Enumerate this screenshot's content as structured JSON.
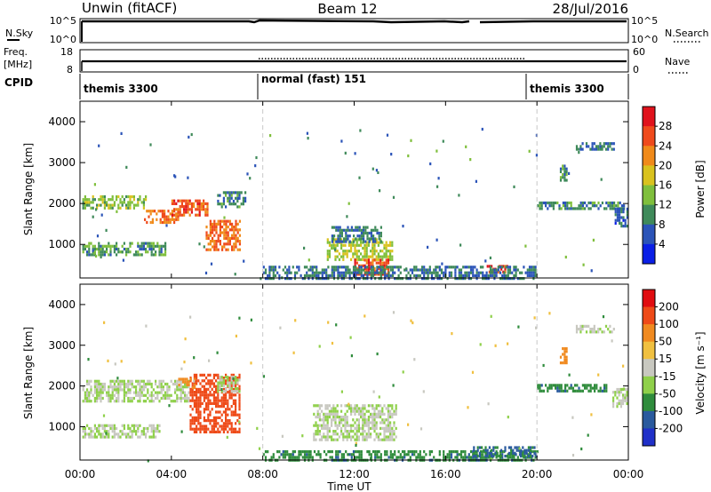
{
  "header": {
    "title": "Unwin (fitACF)",
    "beam": "Beam 12",
    "date": "28/Jul/2016"
  },
  "labels": {
    "nsky": "N.Sky",
    "nsearch": "N.Search",
    "freq_top": "Freq.",
    "freq_unit": "[MHz]",
    "nave": "Nave",
    "cpid": "CPID",
    "ylabel": "Slant Range [km]",
    "xlabel": "Time UT"
  },
  "ticks": {
    "noise_left": [
      "10^5",
      "10^0"
    ],
    "noise_right": [
      "10^5",
      "10^0"
    ],
    "freq_left": [
      "18",
      "8"
    ],
    "freq_right": [
      "60",
      "0"
    ],
    "range": [
      "1000",
      "2000",
      "3000",
      "4000"
    ],
    "time": [
      "00:00",
      "04:00",
      "08:00",
      "12:00",
      "16:00",
      "20:00",
      "00:00"
    ]
  },
  "cpid_segments": [
    {
      "label": "themis 3300",
      "start_h": 0,
      "end_h": 8
    },
    {
      "label": "normal (fast) 151",
      "start_h": 8,
      "end_h": 20
    },
    {
      "label": "themis 3300",
      "start_h": 20,
      "end_h": 24
    }
  ],
  "colorbars": {
    "power": {
      "label": "Power [dB]",
      "ticks": [
        "4",
        "8",
        "12",
        "16",
        "20",
        "24",
        "28"
      ],
      "colors": [
        "#0a1fe6",
        "#2b54b8",
        "#3f8a5a",
        "#7fbf3c",
        "#d9c21e",
        "#f08a1a",
        "#ef4a1c",
        "#e0121c"
      ]
    },
    "velocity": {
      "label": "Velocity [m s⁻¹]",
      "ticks": [
        "200",
        "100",
        "50",
        "15",
        "-15",
        "-50",
        "-100",
        "-200"
      ],
      "colors": [
        "#2030c8",
        "#2a5a9e",
        "#2f8c3c",
        "#8fd04a",
        "#c8c8c0",
        "#f0c040",
        "#f08a20",
        "#ee4a18",
        "#e00c10"
      ]
    }
  },
  "chart_data": [
    {
      "type": "heatmap",
      "title": "Power",
      "x": {
        "label": "Time UT",
        "range_h": [
          0,
          24
        ],
        "tick_labels": [
          "00:00",
          "04:00",
          "08:00",
          "12:00",
          "16:00",
          "20:00",
          "00:00"
        ]
      },
      "y": {
        "label": "Slant Range [km]",
        "range_km": [
          180,
          4500
        ],
        "ticks": [
          1000,
          2000,
          3000,
          4000
        ]
      },
      "colorbar": {
        "label": "Power [dB]",
        "range": [
          0,
          30
        ],
        "ticks": [
          4,
          8,
          12,
          16,
          20,
          24,
          28
        ]
      },
      "regions": [
        {
          "t": [
            0.1,
            2.9
          ],
          "r": [
            1900,
            2200
          ],
          "level": 14
        },
        {
          "t": [
            2.8,
            4.3
          ],
          "r": [
            1550,
            1850
          ],
          "level": 24
        },
        {
          "t": [
            4.0,
            5.6
          ],
          "r": [
            1700,
            2100
          ],
          "level": 25
        },
        {
          "t": [
            0.1,
            3.7
          ],
          "r": [
            780,
            1060
          ],
          "level": 11
        },
        {
          "t": [
            5.5,
            7.0
          ],
          "r": [
            900,
            1600
          ],
          "level": 24
        },
        {
          "t": [
            6.0,
            7.2
          ],
          "r": [
            1900,
            2300
          ],
          "level": 9
        },
        {
          "t": [
            10.8,
            13.7
          ],
          "r": [
            650,
            1150
          ],
          "level": 16
        },
        {
          "t": [
            12.0,
            13.5
          ],
          "r": [
            250,
            650
          ],
          "level": 26
        },
        {
          "t": [
            11.0,
            13.2
          ],
          "r": [
            1100,
            1450
          ],
          "level": 8
        },
        {
          "t": [
            17.8,
            18.7
          ],
          "r": [
            300,
            500
          ],
          "level": 27
        },
        {
          "t": [
            8.0,
            20.0
          ],
          "r": [
            190,
            480
          ],
          "level": 8
        },
        {
          "t": [
            20.0,
            23.8
          ],
          "r": [
            1850,
            2050
          ],
          "level": 9
        },
        {
          "t": [
            21.0,
            21.3
          ],
          "r": [
            2600,
            2950
          ],
          "level": 10
        },
        {
          "t": [
            21.7,
            23.4
          ],
          "r": [
            3300,
            3500
          ],
          "level": 8
        },
        {
          "t": [
            23.4,
            23.95
          ],
          "r": [
            1450,
            1900
          ],
          "level": 7
        }
      ]
    },
    {
      "type": "heatmap",
      "title": "Velocity",
      "x": {
        "label": "Time UT",
        "range_h": [
          0,
          24
        ],
        "tick_labels": [
          "00:00",
          "04:00",
          "08:00",
          "12:00",
          "16:00",
          "20:00",
          "00:00"
        ]
      },
      "y": {
        "label": "Slant Range [km]",
        "range_km": [
          180,
          4500
        ],
        "ticks": [
          1000,
          2000,
          3000,
          4000
        ]
      },
      "colorbar": {
        "label": "Velocity [m s-1]",
        "ticks": [
          200,
          100,
          50,
          15,
          -15,
          -50,
          -100,
          -200
        ]
      },
      "regions": [
        {
          "t": [
            0.1,
            4.8
          ],
          "r": [
            1600,
            2150
          ],
          "level": 0
        },
        {
          "t": [
            0.1,
            3.5
          ],
          "r": [
            780,
            1060
          ],
          "level": 0
        },
        {
          "t": [
            4.8,
            7.0
          ],
          "r": [
            900,
            2300
          ],
          "level": -210
        },
        {
          "t": [
            4.3,
            5.0
          ],
          "r": [
            1950,
            2200
          ],
          "level": -110
        },
        {
          "t": [
            6.0,
            7.0
          ],
          "r": [
            1850,
            2250
          ],
          "level": 0
        },
        {
          "t": [
            10.2,
            13.8
          ],
          "r": [
            680,
            1550
          ],
          "level": 0
        },
        {
          "t": [
            8.0,
            20.0
          ],
          "r": [
            190,
            420
          ],
          "level": 60
        },
        {
          "t": [
            17.2,
            20.0
          ],
          "r": [
            260,
            520
          ],
          "level": 80
        },
        {
          "t": [
            20.0,
            23.0
          ],
          "r": [
            1850,
            2050
          ],
          "level": 60
        },
        {
          "t": [
            21.0,
            21.3
          ],
          "r": [
            2600,
            2950
          ],
          "level": -110
        },
        {
          "t": [
            21.7,
            23.4
          ],
          "r": [
            3300,
            3500
          ],
          "level": 0
        },
        {
          "t": [
            23.3,
            23.95
          ],
          "r": [
            1500,
            1950
          ],
          "level": 0
        }
      ]
    }
  ]
}
